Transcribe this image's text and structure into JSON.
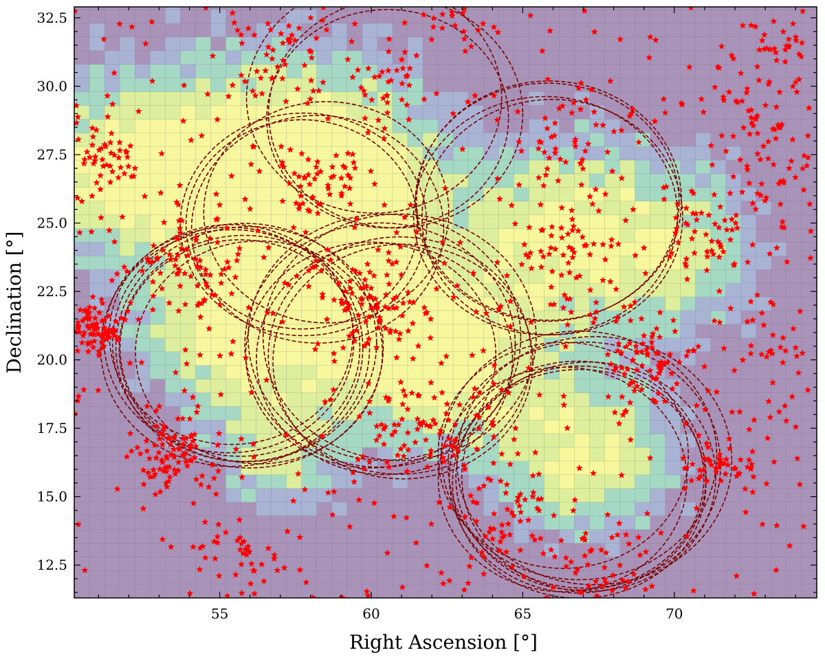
{
  "chart_data": {
    "type": "scatter",
    "title": "",
    "xlabel": "Right Ascension [°]",
    "ylabel": "Declination [°]",
    "xlim": [
      50.2,
      74.7
    ],
    "ylim": [
      11.3,
      32.9
    ],
    "xticks": [
      55,
      60,
      65,
      70
    ],
    "xtick_labels": [
      "55",
      "60",
      "65",
      "70"
    ],
    "yticks": [
      12.5,
      15.0,
      17.5,
      20.0,
      22.5,
      25.0,
      27.5,
      30.0,
      32.5
    ],
    "ytick_labels": [
      "12.5",
      "15.0",
      "17.5",
      "20.0",
      "22.5",
      "25.0",
      "27.5",
      "30.0",
      "32.5"
    ],
    "grid": "background density map (pixel grid)",
    "colors": {
      "background_cell": "#a993b8",
      "low_density": "#a9b3d4",
      "mid_density": "#a5d9c4",
      "high_density": "#ddee9c",
      "peak_density": "#f7f79d",
      "stars": "#ff0000",
      "circles": "#7a0000"
    },
    "density_hotspots": [
      {
        "ra": 54.0,
        "dec": 27.0,
        "weight": 0.7,
        "spread": 3.0
      },
      {
        "ra": 58.5,
        "dec": 27.5,
        "weight": 0.9,
        "spread": 2.5
      },
      {
        "ra": 55.8,
        "dec": 21.0,
        "weight": 1.0,
        "spread": 2.2
      },
      {
        "ra": 59.2,
        "dec": 24.5,
        "weight": 0.8,
        "spread": 2.0
      },
      {
        "ra": 61.0,
        "dec": 20.5,
        "weight": 0.85,
        "spread": 2.0
      },
      {
        "ra": 63.0,
        "dec": 19.5,
        "weight": 0.6,
        "spread": 2.0
      },
      {
        "ra": 66.5,
        "dec": 24.5,
        "weight": 0.9,
        "spread": 2.6
      },
      {
        "ra": 67.0,
        "dec": 16.5,
        "weight": 0.9,
        "spread": 2.0
      },
      {
        "ra": 57.0,
        "dec": 16.5,
        "weight": 0.6,
        "spread": 1.5
      },
      {
        "ra": 70.5,
        "dec": 24.0,
        "weight": 0.5,
        "spread": 2.0
      },
      {
        "ra": 51.5,
        "dec": 27.0,
        "weight": 0.6,
        "spread": 1.8
      }
    ],
    "circle_groups": [
      {
        "ra": 55.9,
        "dec": 20.8,
        "radius": 4.2,
        "count": 8
      },
      {
        "ra": 58.0,
        "dec": 25.0,
        "radius": 4.0,
        "count": 4
      },
      {
        "ra": 60.5,
        "dec": 29.0,
        "radius": 4.0,
        "count": 3
      },
      {
        "ra": 60.5,
        "dec": 20.3,
        "radius": 4.3,
        "count": 7
      },
      {
        "ra": 66.0,
        "dec": 25.3,
        "radius": 4.2,
        "count": 4
      },
      {
        "ra": 66.8,
        "dec": 16.0,
        "radius": 4.3,
        "count": 9
      }
    ],
    "star_clusters": [
      {
        "ra": 50.8,
        "dec": 21.0,
        "spread": 0.8,
        "n": 90
      },
      {
        "ra": 51.2,
        "dec": 27.5,
        "spread": 1.0,
        "n": 45
      },
      {
        "ra": 53.5,
        "dec": 16.5,
        "spread": 1.2,
        "n": 80
      },
      {
        "ra": 54.0,
        "dec": 23.5,
        "spread": 1.5,
        "n": 70
      },
      {
        "ra": 55.5,
        "dec": 12.5,
        "spread": 1.5,
        "n": 45
      },
      {
        "ra": 57.0,
        "dec": 31.0,
        "spread": 1.5,
        "n": 40
      },
      {
        "ra": 58.5,
        "dec": 26.5,
        "spread": 1.5,
        "n": 55
      },
      {
        "ra": 60.0,
        "dec": 22.0,
        "spread": 1.8,
        "n": 90
      },
      {
        "ra": 60.5,
        "dec": 30.0,
        "spread": 1.2,
        "n": 35
      },
      {
        "ra": 62.0,
        "dec": 17.5,
        "spread": 1.8,
        "n": 70
      },
      {
        "ra": 62.5,
        "dec": 32.0,
        "spread": 1.2,
        "n": 20
      },
      {
        "ra": 64.5,
        "dec": 14.0,
        "spread": 1.5,
        "n": 55
      },
      {
        "ra": 66.5,
        "dec": 28.0,
        "spread": 1.5,
        "n": 45
      },
      {
        "ra": 66.5,
        "dec": 24.0,
        "spread": 1.8,
        "n": 55
      },
      {
        "ra": 67.5,
        "dec": 12.5,
        "spread": 1.5,
        "n": 40
      },
      {
        "ra": 69.0,
        "dec": 20.0,
        "spread": 1.3,
        "n": 75
      },
      {
        "ra": 71.0,
        "dec": 24.5,
        "spread": 1.2,
        "n": 45
      },
      {
        "ra": 71.5,
        "dec": 16.0,
        "spread": 1.0,
        "n": 40
      },
      {
        "ra": 72.5,
        "dec": 29.0,
        "spread": 1.2,
        "n": 30
      },
      {
        "ra": 73.5,
        "dec": 26.5,
        "spread": 1.5,
        "n": 40
      },
      {
        "ra": 73.5,
        "dec": 20.5,
        "spread": 1.5,
        "n": 30
      },
      {
        "ra": 73.5,
        "dec": 31.5,
        "spread": 1.0,
        "n": 25
      }
    ],
    "background_stars": 450
  }
}
